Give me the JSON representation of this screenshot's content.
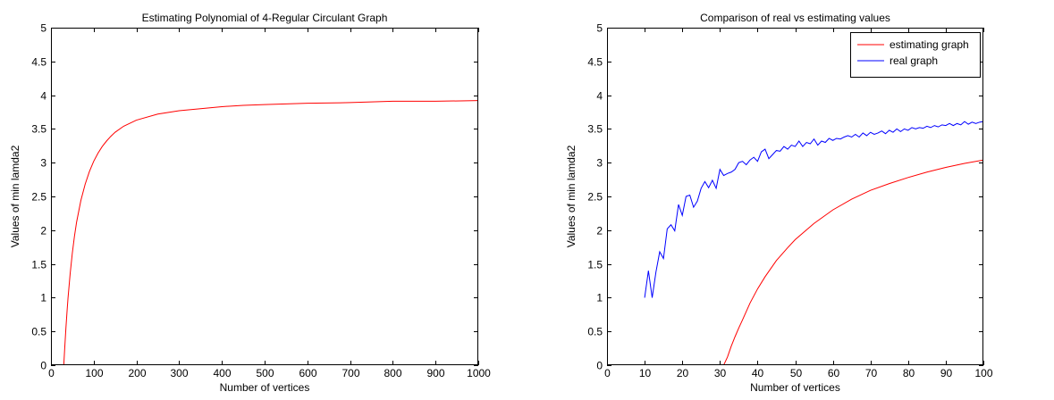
{
  "chart_data": [
    {
      "type": "line",
      "title": "Estimating Polynomial of 4-Regular Circulant Graph",
      "xlabel": "Number of vertices",
      "ylabel": "Values of min lamda2",
      "xlim": [
        0,
        1000
      ],
      "ylim": [
        0,
        5
      ],
      "xticks": [
        "0",
        "100",
        "200",
        "300",
        "400",
        "500",
        "600",
        "700",
        "800",
        "900",
        "1000"
      ],
      "yticks": [
        "0",
        "0.5",
        "1",
        "1.5",
        "2",
        "2.5",
        "3",
        "3.5",
        "4",
        "4.5",
        "5"
      ],
      "grid": false,
      "legend": null,
      "series": [
        {
          "color": "#ff0000",
          "x": [
            30,
            32,
            35,
            38,
            40,
            45,
            50,
            55,
            60,
            70,
            80,
            90,
            100,
            110,
            120,
            130,
            140,
            150,
            170,
            200,
            250,
            300,
            350,
            400,
            450,
            500,
            600,
            700,
            800,
            900,
            1000
          ],
          "y": [
            0,
            0.23,
            0.55,
            0.83,
            1.0,
            1.36,
            1.66,
            1.91,
            2.12,
            2.44,
            2.68,
            2.87,
            3.02,
            3.14,
            3.24,
            3.32,
            3.39,
            3.45,
            3.54,
            3.63,
            3.72,
            3.77,
            3.8,
            3.83,
            3.85,
            3.86,
            3.88,
            3.89,
            3.91,
            3.91,
            3.92
          ]
        }
      ]
    },
    {
      "type": "line",
      "title": "Comparison of real vs estimating values",
      "xlabel": "Number of vertices",
      "ylabel": "Values of min lamda2",
      "xlim": [
        0,
        100
      ],
      "ylim": [
        0,
        5
      ],
      "xticks": [
        "0",
        "10",
        "20",
        "30",
        "40",
        "50",
        "60",
        "70",
        "80",
        "90",
        "100"
      ],
      "yticks": [
        "0",
        "0.5",
        "1",
        "1.5",
        "2",
        "2.5",
        "3",
        "3.5",
        "4",
        "4.5",
        "5"
      ],
      "grid": false,
      "legend": "top-right",
      "series": [
        {
          "name": "estimating graph",
          "color": "#ff0000",
          "x": [
            31,
            32,
            33,
            34,
            35,
            36,
            38,
            40,
            42,
            45,
            48,
            50,
            55,
            60,
            65,
            70,
            75,
            80,
            85,
            90,
            95,
            100
          ],
          "y": [
            0,
            0.12,
            0.28,
            0.42,
            0.55,
            0.67,
            0.92,
            1.13,
            1.31,
            1.55,
            1.74,
            1.86,
            2.1,
            2.3,
            2.46,
            2.59,
            2.69,
            2.78,
            2.86,
            2.93,
            2.99,
            3.04
          ]
        },
        {
          "name": "real graph",
          "color": "#0000ff",
          "x": [
            10,
            11,
            12,
            13,
            14,
            15,
            16,
            17,
            18,
            19,
            20,
            21,
            22,
            23,
            24,
            25,
            26,
            27,
            28,
            29,
            30,
            31,
            32,
            33,
            34,
            35,
            36,
            37,
            38,
            39,
            40,
            41,
            42,
            43,
            44,
            45,
            46,
            47,
            48,
            49,
            50,
            51,
            52,
            53,
            54,
            55,
            56,
            57,
            58,
            59,
            60,
            61,
            62,
            63,
            64,
            65,
            66,
            67,
            68,
            69,
            70,
            71,
            72,
            73,
            74,
            75,
            76,
            77,
            78,
            79,
            80,
            81,
            82,
            83,
            84,
            85,
            86,
            87,
            88,
            89,
            90,
            91,
            92,
            93,
            94,
            95,
            96,
            97,
            98,
            99,
            100
          ],
          "y": [
            1.0,
            1.4,
            1.0,
            1.38,
            1.68,
            1.58,
            2.02,
            2.08,
            1.99,
            2.38,
            2.22,
            2.5,
            2.52,
            2.34,
            2.43,
            2.62,
            2.72,
            2.63,
            2.74,
            2.62,
            2.9,
            2.81,
            2.84,
            2.86,
            2.9,
            3.0,
            3.02,
            2.97,
            3.04,
            3.08,
            3.02,
            3.16,
            3.2,
            3.06,
            3.12,
            3.18,
            3.17,
            3.24,
            3.2,
            3.26,
            3.24,
            3.32,
            3.24,
            3.3,
            3.28,
            3.35,
            3.26,
            3.32,
            3.3,
            3.36,
            3.33,
            3.36,
            3.35,
            3.38,
            3.4,
            3.38,
            3.42,
            3.38,
            3.44,
            3.4,
            3.45,
            3.42,
            3.44,
            3.47,
            3.43,
            3.48,
            3.45,
            3.5,
            3.46,
            3.5,
            3.48,
            3.52,
            3.5,
            3.52,
            3.51,
            3.54,
            3.52,
            3.55,
            3.53,
            3.56,
            3.55,
            3.58,
            3.55,
            3.58,
            3.56,
            3.61,
            3.57,
            3.6,
            3.58,
            3.6,
            3.61
          ]
        }
      ]
    }
  ]
}
